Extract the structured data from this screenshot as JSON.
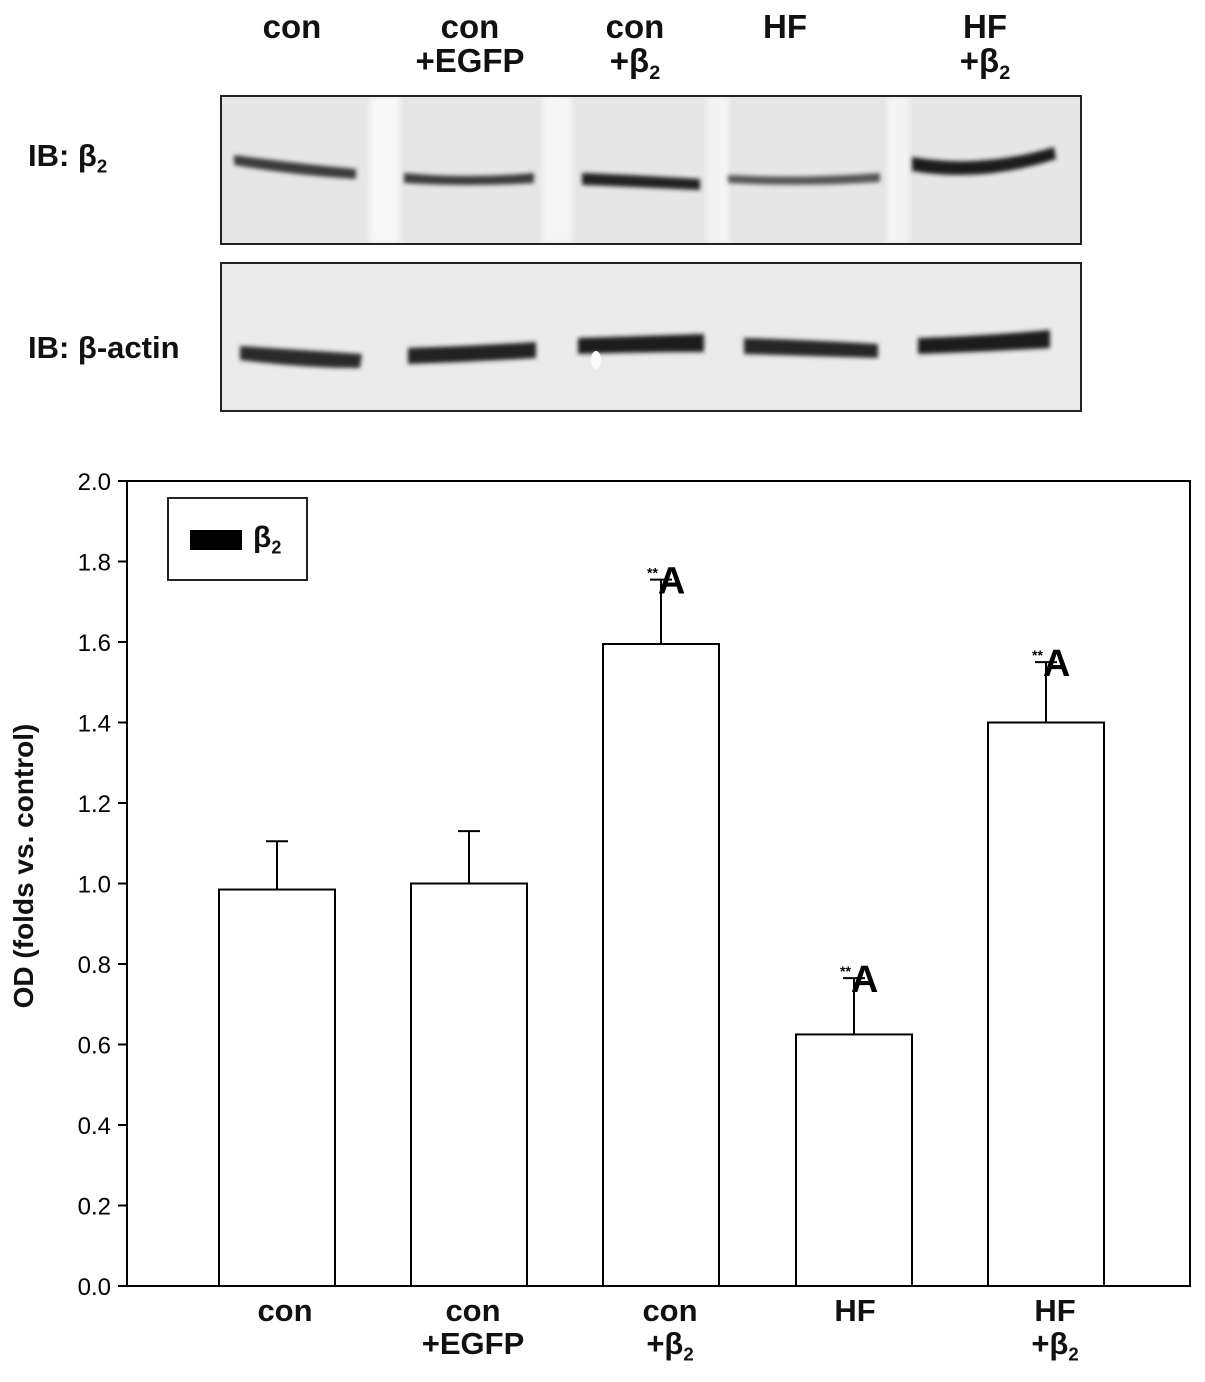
{
  "lanes": [
    {
      "line1": "con",
      "line2": "",
      "sub": ""
    },
    {
      "line1": "con",
      "line2": "+EGFP",
      "sub": ""
    },
    {
      "line1": "con",
      "line2": "+β",
      "sub": "2"
    },
    {
      "line1": "HF",
      "line2": "",
      "sub": ""
    },
    {
      "line1": "HF",
      "line2": "+β",
      "sub": "2"
    }
  ],
  "blots": {
    "top": {
      "label": "IB: β",
      "label_sub": "2"
    },
    "bottom": {
      "label": "IB: β-actin",
      "label_sub": ""
    }
  },
  "chart_data": {
    "type": "bar",
    "categories": [
      "con",
      "con +EGFP",
      "con +β2",
      "HF",
      "HF +β2"
    ],
    "series": [
      {
        "name": "β2",
        "values": [
          0.985,
          1.0,
          1.595,
          0.625,
          1.4
        ]
      }
    ],
    "errors": [
      0.12,
      0.13,
      0.16,
      0.14,
      0.15
    ],
    "annotations": [
      "",
      "",
      "**A",
      "**A",
      "**A"
    ],
    "ylabel": "OD (folds vs. control)",
    "xlabel": "",
    "ylim": [
      0,
      2.0
    ],
    "yticks": [
      "0.0",
      "0.2",
      "0.4",
      "0.6",
      "0.8",
      "1.0",
      "1.2",
      "1.4",
      "1.6",
      "1.8",
      "2.0"
    ],
    "legend": {
      "name": "β",
      "sub": "2",
      "position": "top-left"
    },
    "grid": false,
    "colors": {
      "bar_fill": "#ffffff",
      "bar_stroke": "#000000",
      "legend_swatch": "#000000"
    }
  }
}
